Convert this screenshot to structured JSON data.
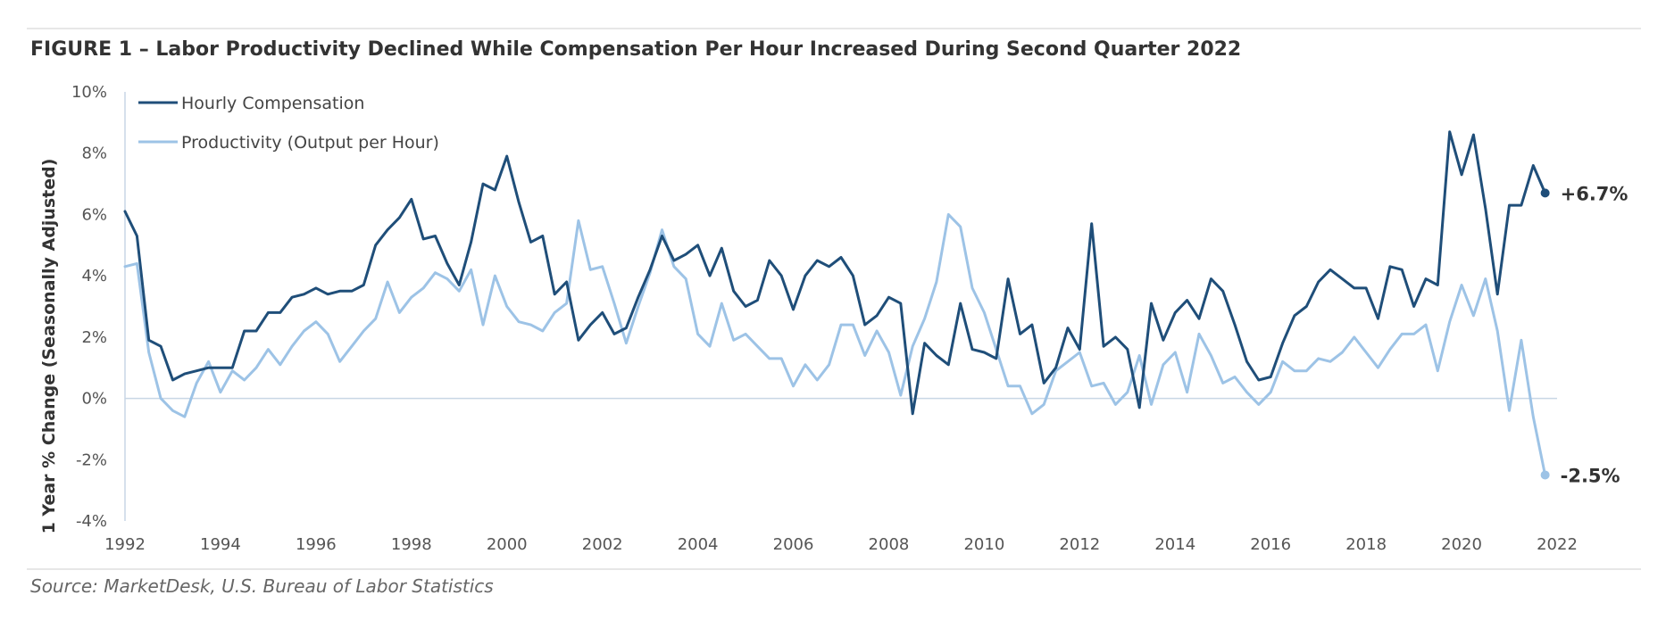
{
  "colors": {
    "compensation": "#1f4e79",
    "productivity": "#9dc3e6",
    "rule": "#cfcfcf",
    "axis": "#c8d6e5",
    "text": "#333333"
  },
  "chart_data": {
    "type": "line",
    "title": "FIGURE 1 – Labor Productivity Declined While Compensation Per Hour Increased During Second Quarter 2022",
    "ylabel": "1 Year % Change (Seasonally Adjusted)",
    "xlabel": "",
    "xlim": [
      1992,
      2022
    ],
    "ylim": [
      -4,
      10
    ],
    "x_ticks": [
      "1992",
      "1994",
      "1996",
      "1998",
      "2000",
      "2002",
      "2004",
      "2006",
      "2008",
      "2010",
      "2012",
      "2014",
      "2016",
      "2018",
      "2020",
      "2022"
    ],
    "y_ticks": [
      "10%",
      "8%",
      "6%",
      "4%",
      "2%",
      "0%",
      "-2%",
      "-4%"
    ],
    "legend_position": "top-left",
    "source": "Source: MarketDesk, U.S. Bureau of Labor Statistics",
    "series": [
      {
        "name": "Hourly Compensation",
        "end_label": "+6.7%",
        "x": [
          1992.0,
          1992.25,
          1992.5,
          1992.75,
          1993.0,
          1993.25,
          1993.5,
          1993.75,
          1994.0,
          1994.25,
          1994.5,
          1994.75,
          1995.0,
          1995.25,
          1995.5,
          1995.75,
          1996.0,
          1996.25,
          1996.5,
          1996.75,
          1997.0,
          1997.25,
          1997.5,
          1997.75,
          1998.0,
          1998.25,
          1998.5,
          1998.75,
          1999.0,
          1999.25,
          1999.5,
          1999.75,
          2000.0,
          2000.25,
          2000.5,
          2000.75,
          2001.0,
          2001.25,
          2001.5,
          2001.75,
          2002.0,
          2002.25,
          2002.5,
          2002.75,
          2003.0,
          2003.25,
          2003.5,
          2003.75,
          2004.0,
          2004.25,
          2004.5,
          2004.75,
          2005.0,
          2005.25,
          2005.5,
          2005.75,
          2006.0,
          2006.25,
          2006.5,
          2006.75,
          2007.0,
          2007.25,
          2007.5,
          2007.75,
          2008.0,
          2008.25,
          2008.5,
          2008.75,
          2009.0,
          2009.25,
          2009.5,
          2009.75,
          2010.0,
          2010.25,
          2010.5,
          2010.75,
          2011.0,
          2011.25,
          2011.5,
          2011.75,
          2012.0,
          2012.25,
          2012.5,
          2012.75,
          2013.0,
          2013.25,
          2013.5,
          2013.75,
          2014.0,
          2014.25,
          2014.5,
          2014.75,
          2015.0,
          2015.25,
          2015.5,
          2015.75,
          2016.0,
          2016.25,
          2016.5,
          2016.75,
          2017.0,
          2017.25,
          2017.5,
          2017.75,
          2018.0,
          2018.25,
          2018.5,
          2018.75,
          2019.0,
          2019.25,
          2019.5,
          2019.75,
          2020.0,
          2020.25,
          2020.5,
          2020.75,
          2021.0,
          2021.25,
          2021.5,
          2021.75
        ],
        "values": [
          6.1,
          5.3,
          1.9,
          1.7,
          0.6,
          0.8,
          0.9,
          1.0,
          1.0,
          1.0,
          2.2,
          2.2,
          2.8,
          2.8,
          3.3,
          3.4,
          3.6,
          3.4,
          3.5,
          3.5,
          3.7,
          5.0,
          5.5,
          5.9,
          6.5,
          5.2,
          5.3,
          4.4,
          3.7,
          5.1,
          7.0,
          6.8,
          7.9,
          6.4,
          5.1,
          5.3,
          3.4,
          3.8,
          1.9,
          2.4,
          2.8,
          2.1,
          2.3,
          3.3,
          4.2,
          5.3,
          4.5,
          4.7,
          5.0,
          4.0,
          4.9,
          3.5,
          3.0,
          3.2,
          4.5,
          4.0,
          2.9,
          4.0,
          4.5,
          4.3,
          4.6,
          4.0,
          2.4,
          2.7,
          3.3,
          3.1,
          -0.5,
          1.8,
          1.4,
          1.1,
          3.1,
          1.6,
          1.5,
          1.3,
          3.9,
          2.1,
          2.4,
          0.5,
          1.0,
          2.3,
          1.6,
          5.7,
          1.7,
          2.0,
          1.6,
          -0.3,
          3.1,
          1.9,
          2.8,
          3.2,
          2.6,
          3.9,
          3.5,
          2.4,
          1.2,
          0.6,
          0.7,
          1.8,
          2.7,
          3.0,
          3.8,
          4.2,
          3.9,
          3.6,
          3.6,
          2.6,
          4.3,
          4.2,
          3.0,
          3.9,
          3.7,
          8.7,
          7.3,
          8.6,
          6.2,
          3.4,
          6.3,
          6.3,
          7.6,
          6.7
        ]
      },
      {
        "name": "Productivity (Output per Hour)",
        "end_label": "-2.5%",
        "x": [
          1992.0,
          1992.25,
          1992.5,
          1992.75,
          1993.0,
          1993.25,
          1993.5,
          1993.75,
          1994.0,
          1994.25,
          1994.5,
          1994.75,
          1995.0,
          1995.25,
          1995.5,
          1995.75,
          1996.0,
          1996.25,
          1996.5,
          1996.75,
          1997.0,
          1997.25,
          1997.5,
          1997.75,
          1998.0,
          1998.25,
          1998.5,
          1998.75,
          1999.0,
          1999.25,
          1999.5,
          1999.75,
          2000.0,
          2000.25,
          2000.5,
          2000.75,
          2001.0,
          2001.25,
          2001.5,
          2001.75,
          2002.0,
          2002.25,
          2002.5,
          2002.75,
          2003.0,
          2003.25,
          2003.5,
          2003.75,
          2004.0,
          2004.25,
          2004.5,
          2004.75,
          2005.0,
          2005.25,
          2005.5,
          2005.75,
          2006.0,
          2006.25,
          2006.5,
          2006.75,
          2007.0,
          2007.25,
          2007.5,
          2007.75,
          2008.0,
          2008.25,
          2008.5,
          2008.75,
          2009.0,
          2009.25,
          2009.5,
          2009.75,
          2010.0,
          2010.25,
          2010.5,
          2010.75,
          2011.0,
          2011.25,
          2011.5,
          2011.75,
          2012.0,
          2012.25,
          2012.5,
          2012.75,
          2013.0,
          2013.25,
          2013.5,
          2013.75,
          2014.0,
          2014.25,
          2014.5,
          2014.75,
          2015.0,
          2015.25,
          2015.5,
          2015.75,
          2016.0,
          2016.25,
          2016.5,
          2016.75,
          2017.0,
          2017.25,
          2017.5,
          2017.75,
          2018.0,
          2018.25,
          2018.5,
          2018.75,
          2019.0,
          2019.25,
          2019.5,
          2019.75,
          2020.0,
          2020.25,
          2020.5,
          2020.75,
          2021.0,
          2021.25,
          2021.5,
          2021.75
        ],
        "values": [
          4.3,
          4.4,
          1.5,
          0.0,
          -0.4,
          -0.6,
          0.5,
          1.2,
          0.2,
          0.9,
          0.6,
          1.0,
          1.6,
          1.1,
          1.7,
          2.2,
          2.5,
          2.1,
          1.2,
          1.7,
          2.2,
          2.6,
          3.8,
          2.8,
          3.3,
          3.6,
          4.1,
          3.9,
          3.5,
          4.2,
          2.4,
          4.0,
          3.0,
          2.5,
          2.4,
          2.2,
          2.8,
          3.1,
          5.8,
          4.2,
          4.3,
          3.1,
          1.8,
          3.0,
          4.1,
          5.5,
          4.3,
          3.9,
          2.1,
          1.7,
          3.1,
          1.9,
          2.1,
          1.7,
          1.3,
          1.3,
          0.4,
          1.1,
          0.6,
          1.1,
          2.4,
          2.4,
          1.4,
          2.2,
          1.5,
          0.1,
          1.7,
          2.6,
          3.8,
          6.0,
          5.6,
          3.6,
          2.8,
          1.6,
          0.4,
          0.4,
          -0.5,
          -0.2,
          0.9,
          1.2,
          1.5,
          0.4,
          0.5,
          -0.2,
          0.2,
          1.4,
          -0.2,
          1.1,
          1.5,
          0.2,
          2.1,
          1.4,
          0.5,
          0.7,
          0.2,
          -0.2,
          0.2,
          1.2,
          0.9,
          0.9,
          1.3,
          1.2,
          1.5,
          2.0,
          1.5,
          1.0,
          1.6,
          2.1,
          2.1,
          2.4,
          0.9,
          2.5,
          3.7,
          2.7,
          3.9,
          2.2,
          -0.4,
          1.9,
          -0.6,
          -2.5
        ]
      }
    ]
  }
}
